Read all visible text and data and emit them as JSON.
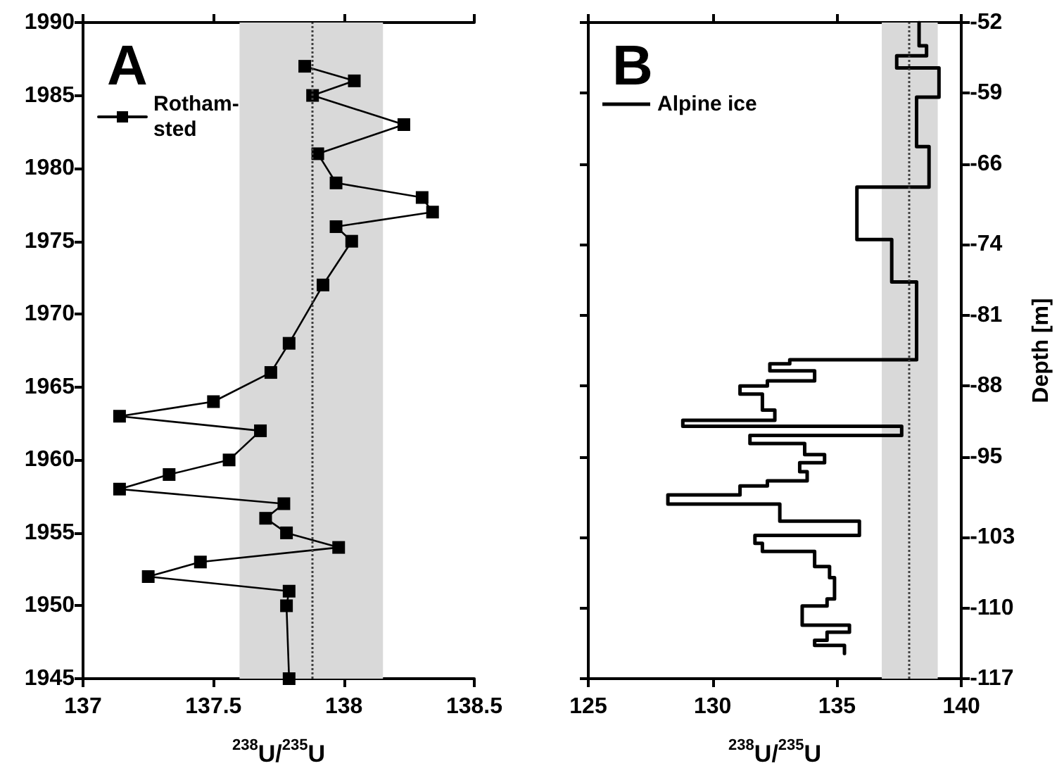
{
  "chart_data": [
    {
      "type": "line",
      "title": "A",
      "xlabel": "$^{238}$U/$^{235}$U",
      "marker": "square",
      "line_style": "solid",
      "legend": "top left",
      "grid": false,
      "xlim": [
        137,
        138.5
      ],
      "xticks": [
        137,
        137.5,
        138,
        138.5
      ],
      "ylim": [
        1945,
        1990
      ],
      "yticks": [
        1945,
        1950,
        1955,
        1960,
        1965,
        1970,
        1975,
        1980,
        1985,
        1990
      ],
      "bands": [
        {
          "axis": "x",
          "from": 137.6,
          "to": 138.15,
          "color": "#d9d9d9"
        }
      ],
      "ref_lines": [
        {
          "axis": "x",
          "value": 137.88,
          "line_style": "dotted",
          "color": "#404040"
        }
      ],
      "series": [
        {
          "name": "Rotham-\nsted",
          "color": "#000000",
          "x": [
            137.85,
            138.04,
            137.88,
            138.23,
            137.9,
            137.97,
            138.3,
            138.34,
            137.97,
            138.03,
            137.92,
            137.79,
            137.72,
            137.5,
            137.14,
            137.68,
            137.56,
            137.33,
            137.14,
            137.77,
            137.7,
            137.78,
            137.98,
            137.45,
            137.25,
            137.79,
            137.78,
            137.79
          ],
          "values": [
            1987,
            1986,
            1985,
            1983,
            1981,
            1979,
            1978,
            1977,
            1976,
            1975,
            1972,
            1968,
            1966,
            1964,
            1963,
            1962,
            1960,
            1959,
            1958,
            1957,
            1956,
            1955,
            1954,
            1953,
            1952,
            1951,
            1950,
            1945
          ]
        }
      ]
    },
    {
      "type": "line",
      "title": "B",
      "xlabel": "$^{238}$U/$^{235}$U",
      "y2label": "Depth [m]",
      "marker": "none",
      "line_style": "solid",
      "legend": "top left",
      "grid": false,
      "xlim": [
        125,
        140
      ],
      "xticks": [
        125,
        130,
        135,
        140
      ],
      "y2lim": [
        -117,
        -52
      ],
      "y2ticks": [
        -52,
        -59,
        -66,
        -74,
        -81,
        -88,
        -95,
        -103,
        -110,
        -117
      ],
      "bands": [
        {
          "axis": "x",
          "from": 136.8,
          "to": 139.05,
          "color": "#d9d9d9"
        }
      ],
      "ref_lines": [
        {
          "axis": "x",
          "value": 137.88,
          "line_style": "dotted",
          "color": "#404040"
        }
      ],
      "series": [
        {
          "name": "Alpine ice",
          "color": "#000000",
          "axis": "y2",
          "x": [
            138.3,
            138.3,
            138.6,
            138.6,
            137.4,
            137.4,
            139.1,
            139.1,
            138.2,
            138.2,
            138.7,
            138.7,
            135.8,
            135.8,
            137.2,
            137.2,
            138.2,
            138.2,
            133.1,
            133.1,
            132.3,
            132.3,
            134.1,
            134.1,
            132.2,
            132.2,
            131.1,
            131.1,
            132.0,
            132.0,
            132.5,
            132.5,
            128.8,
            128.8,
            137.6,
            137.6,
            131.5,
            131.5,
            133.7,
            133.7,
            134.5,
            134.5,
            133.5,
            133.5,
            133.8,
            133.8,
            132.2,
            132.2,
            131.1,
            131.1,
            128.2,
            128.2,
            132.7,
            132.7,
            135.9,
            135.9,
            131.7,
            131.7,
            132.0,
            132.0,
            134.1,
            134.1,
            134.7,
            134.7,
            134.9,
            134.9,
            134.6,
            134.6,
            133.6,
            133.6,
            135.5,
            135.5,
            134.6,
            134.6,
            134.1,
            134.1,
            135.3,
            135.3
          ],
          "values": [
            -52,
            -54.3,
            -54.3,
            -55.3,
            -55.3,
            -56.5,
            -56.5,
            -59.4,
            -59.4,
            -64.3,
            -64.3,
            -68.3,
            -68.3,
            -73.5,
            -73.5,
            -77.7,
            -77.7,
            -85.4,
            -85.4,
            -85.8,
            -85.8,
            -86.5,
            -86.5,
            -87.5,
            -87.5,
            -88.0,
            -88.0,
            -88.8,
            -88.8,
            -90.4,
            -90.4,
            -91.4,
            -91.4,
            -92.0,
            -92.0,
            -92.9,
            -92.9,
            -93.7,
            -93.7,
            -94.8,
            -94.8,
            -95.6,
            -95.6,
            -96.5,
            -96.5,
            -97.4,
            -97.4,
            -97.9,
            -97.9,
            -98.8,
            -98.8,
            -99.7,
            -99.7,
            -101.4,
            -101.4,
            -102.8,
            -102.8,
            -103.6,
            -103.6,
            -104.4,
            -104.4,
            -105.9,
            -105.9,
            -107.0,
            -107.0,
            -109.1,
            -109.1,
            -109.8,
            -109.8,
            -111.7,
            -111.7,
            -112.4,
            -112.4,
            -113.2,
            -113.2,
            -113.7,
            -113.7,
            -114.5
          ]
        }
      ]
    }
  ]
}
